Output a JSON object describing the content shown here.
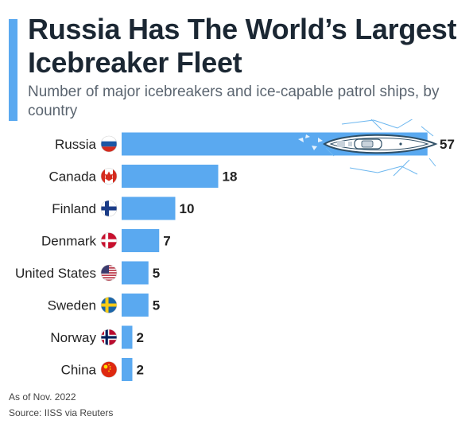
{
  "header": {
    "title": "Russia Has The World’s Largest Icebreaker Fleet",
    "subtitle": "Number of major icebreakers and ice-capable patrol ships, by country"
  },
  "footer": {
    "note": "As of Nov. 2022",
    "source": "Source: IISS via Reuters"
  },
  "colors": {
    "bar": "#5aa9f0",
    "accent": "#5aa9f0",
    "title": "#1b2733",
    "ship_line": "#2f4f66",
    "ice": "#6db7ef"
  },
  "chart_data": {
    "type": "bar",
    "orientation": "horizontal",
    "title": "Russia Has The World’s Largest Icebreaker Fleet",
    "subtitle": "Number of major icebreakers and ice-capable patrol ships, by country",
    "categories": [
      "Russia",
      "Canada",
      "Finland",
      "Denmark",
      "United States",
      "Sweden",
      "Norway",
      "China"
    ],
    "values": [
      57,
      18,
      10,
      7,
      5,
      5,
      2,
      2
    ],
    "flags": [
      "flag-russia-icon",
      "flag-canada-icon",
      "flag-finland-icon",
      "flag-denmark-icon",
      "flag-united-states-icon",
      "flag-sweden-icon",
      "flag-norway-icon",
      "flag-china-icon"
    ],
    "data_labels": true,
    "grid": false,
    "legend": "none",
    "decoration": "icebreaker-ship-icon"
  }
}
